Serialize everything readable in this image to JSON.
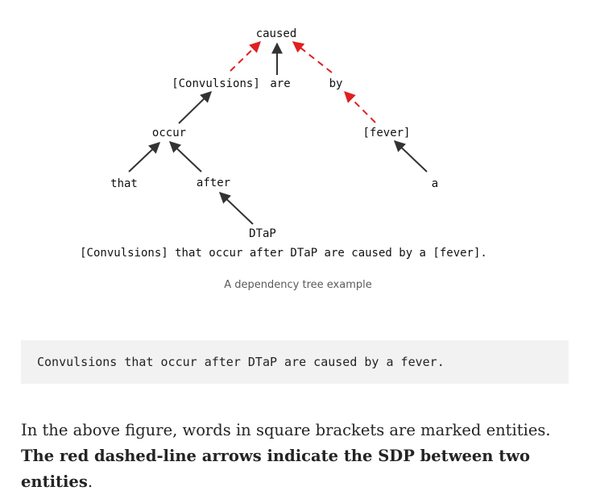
{
  "diagram": {
    "words": {
      "caused": "caused",
      "convulsions": "[Convulsions]",
      "are": "are",
      "by": "by",
      "occur": "occur",
      "fever": "[fever]",
      "that": "that",
      "after": "after",
      "a": "a",
      "dtap": "DTaP"
    },
    "sentence": "[Convulsions] that occur after DTaP are caused by a [fever].",
    "edges": [
      {
        "from": "convulsions",
        "to": "caused",
        "style": "red-dashed"
      },
      {
        "from": "are",
        "to": "caused",
        "style": "black-solid"
      },
      {
        "from": "by",
        "to": "caused",
        "style": "red-dashed"
      },
      {
        "from": "fever",
        "to": "by",
        "style": "red-dashed"
      },
      {
        "from": "occur",
        "to": "convulsions",
        "style": "black-solid"
      },
      {
        "from": "that",
        "to": "occur",
        "style": "black-solid"
      },
      {
        "from": "after",
        "to": "occur",
        "style": "black-solid"
      },
      {
        "from": "dtap",
        "to": "after",
        "style": "black-solid"
      },
      {
        "from": "a",
        "to": "fever",
        "style": "black-solid"
      }
    ],
    "colors": {
      "sdp_arrow": "#e02020",
      "tree_arrow": "#333333"
    }
  },
  "caption": "A dependency tree example",
  "code_block": "Convulsions that occur after DTaP are caused by a fever.",
  "paragraph": {
    "text": "In the above figure, words in square brackets are marked entities. ",
    "bold": "The red dashed-line arrows indicate the SDP between two entities",
    "end": "."
  }
}
